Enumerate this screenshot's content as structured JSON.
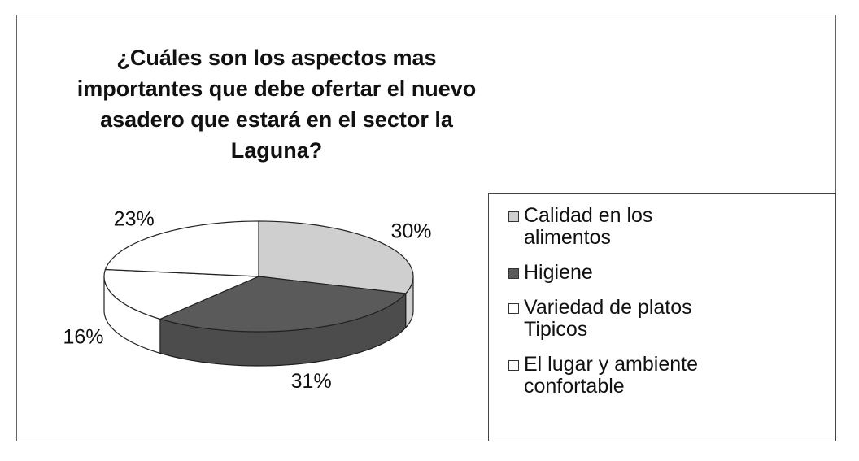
{
  "chart_data": {
    "type": "pie3d",
    "title": "¿Cuáles son los aspectos mas importantes que debe ofertar el nuevo asadero que estará en el sector la Laguna?",
    "categories": [
      "Calidad en los alimentos",
      "Higiene",
      "Variedad de platos Tipicos",
      "El lugar y ambiente confortable"
    ],
    "values": [
      30,
      31,
      16,
      23
    ],
    "value_labels": [
      "30%",
      "31%",
      "16%",
      "23%"
    ],
    "colors": [
      "#cfcfcf",
      "#5a5a5a",
      "#ffffff",
      "#ffffff"
    ],
    "legend": "right"
  }
}
